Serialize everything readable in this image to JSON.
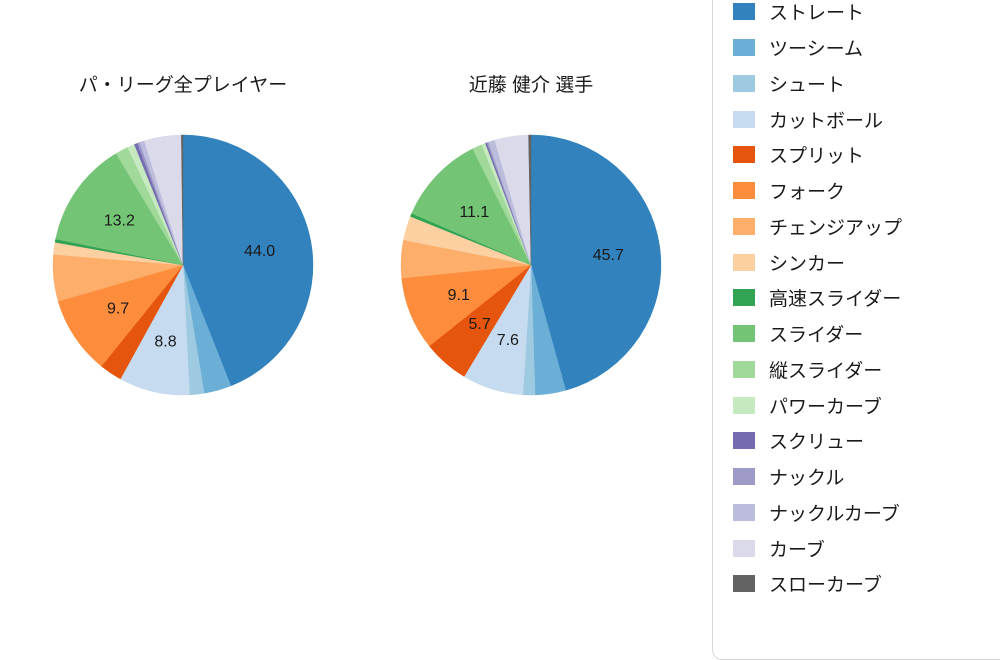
{
  "chart_data": [
    {
      "type": "pie",
      "title": "パ・リーグ全プレイヤー",
      "start_angle_deg": 90,
      "direction": "clockwise",
      "slices": [
        {
          "label": "ストレート",
          "value": 44.0,
          "show_value": true
        },
        {
          "label": "ツーシーム",
          "value": 3.4,
          "show_value": false
        },
        {
          "label": "シュート",
          "value": 1.8,
          "show_value": false
        },
        {
          "label": "カットボール",
          "value": 8.8,
          "show_value": true
        },
        {
          "label": "スプリット",
          "value": 2.8,
          "show_value": false
        },
        {
          "label": "フォーク",
          "value": 9.7,
          "show_value": true
        },
        {
          "label": "チェンジアップ",
          "value": 5.8,
          "show_value": false
        },
        {
          "label": "シンカー",
          "value": 1.5,
          "show_value": false
        },
        {
          "label": "高速スライダー",
          "value": 0.4,
          "show_value": false
        },
        {
          "label": "スライダー",
          "value": 13.2,
          "show_value": true
        },
        {
          "label": "縦スライダー",
          "value": 1.6,
          "show_value": false
        },
        {
          "label": "パワーカーブ",
          "value": 0.9,
          "show_value": false
        },
        {
          "label": "スクリュー",
          "value": 0.4,
          "show_value": false
        },
        {
          "label": "ナックル",
          "value": 0.3,
          "show_value": false
        },
        {
          "label": "ナックルカーブ",
          "value": 0.6,
          "show_value": false
        },
        {
          "label": "カーブ",
          "value": 4.6,
          "show_value": false
        },
        {
          "label": "スローカーブ",
          "value": 0.2,
          "show_value": false
        }
      ]
    },
    {
      "type": "pie",
      "title": "近藤 健介 選手",
      "start_angle_deg": 90,
      "direction": "clockwise",
      "slices": [
        {
          "label": "ストレート",
          "value": 45.7,
          "show_value": true
        },
        {
          "label": "ツーシーム",
          "value": 3.8,
          "show_value": false
        },
        {
          "label": "シュート",
          "value": 1.5,
          "show_value": false
        },
        {
          "label": "カットボール",
          "value": 7.6,
          "show_value": true
        },
        {
          "label": "スプリット",
          "value": 5.7,
          "show_value": true
        },
        {
          "label": "フォーク",
          "value": 9.1,
          "show_value": true
        },
        {
          "label": "チェンジアップ",
          "value": 4.7,
          "show_value": false
        },
        {
          "label": "シンカー",
          "value": 3.0,
          "show_value": false
        },
        {
          "label": "高速スライダー",
          "value": 0.4,
          "show_value": false
        },
        {
          "label": "スライダー",
          "value": 11.1,
          "show_value": true
        },
        {
          "label": "縦スライダー",
          "value": 1.2,
          "show_value": false
        },
        {
          "label": "パワーカーブ",
          "value": 0.5,
          "show_value": false
        },
        {
          "label": "スクリュー",
          "value": 0.2,
          "show_value": false
        },
        {
          "label": "ナックル",
          "value": 0.2,
          "show_value": false
        },
        {
          "label": "ナックルカーブ",
          "value": 0.8,
          "show_value": false
        },
        {
          "label": "カーブ",
          "value": 4.2,
          "show_value": false
        },
        {
          "label": "スローカーブ",
          "value": 0.3,
          "show_value": false
        }
      ]
    }
  ],
  "legend": {
    "items": [
      {
        "label": "ストレート",
        "color": "#3182bd"
      },
      {
        "label": "ツーシーム",
        "color": "#6baed6"
      },
      {
        "label": "シュート",
        "color": "#9ecae1"
      },
      {
        "label": "カットボール",
        "color": "#c6dbef"
      },
      {
        "label": "スプリット",
        "color": "#e6550d"
      },
      {
        "label": "フォーク",
        "color": "#fd8d3c"
      },
      {
        "label": "チェンジアップ",
        "color": "#fdae6b"
      },
      {
        "label": "シンカー",
        "color": "#fdd0a2"
      },
      {
        "label": "高速スライダー",
        "color": "#31a354"
      },
      {
        "label": "スライダー",
        "color": "#74c476"
      },
      {
        "label": "縦スライダー",
        "color": "#a1d99b"
      },
      {
        "label": "パワーカーブ",
        "color": "#c7e9c0"
      },
      {
        "label": "スクリュー",
        "color": "#756bb1"
      },
      {
        "label": "ナックル",
        "color": "#9e9ac8"
      },
      {
        "label": "ナックルカーブ",
        "color": "#bcbddc"
      },
      {
        "label": "カーブ",
        "color": "#dadaeb"
      },
      {
        "label": "スローカーブ",
        "color": "#636363"
      }
    ]
  }
}
